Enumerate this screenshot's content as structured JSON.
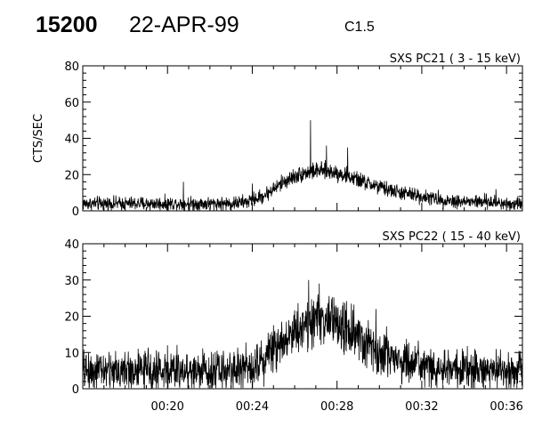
{
  "header": {
    "event_id": "15200",
    "date": "22-APR-99",
    "goes_class": "C1.5"
  },
  "chart_data": [
    {
      "type": "line",
      "title": "SXS PC21  (  3 - 15 keV)",
      "ylabel": "CTS/SEC",
      "xlabel": "",
      "ylim": [
        0,
        80
      ],
      "y_ticks": [
        "0",
        "20",
        "40",
        "60",
        "80"
      ],
      "xlim": [
        "00:16:00",
        "00:36:45"
      ],
      "x_ticks": [
        "00:20",
        "00:24",
        "00:28",
        "00:32",
        "00:36"
      ],
      "grid": false,
      "series": [
        {
          "x": [
            "00:16:00",
            "00:17:00",
            "00:18:00",
            "00:19:00",
            "00:20:00",
            "00:21:00",
            "00:22:00",
            "00:23:00",
            "00:23:45",
            "00:24:30",
            "00:25:00",
            "00:25:30",
            "00:26:00",
            "00:26:30",
            "00:27:00",
            "00:27:30",
            "00:28:00",
            "00:28:30",
            "00:29:00",
            "00:29:30",
            "00:30:00",
            "00:31:00",
            "00:32:00",
            "00:33:00",
            "00:34:00",
            "00:35:00",
            "00:36:00",
            "00:36:45"
          ],
          "y": [
            4,
            4,
            4,
            4,
            4,
            4,
            4,
            4,
            5,
            8,
            12,
            16,
            19,
            21,
            22,
            22,
            21,
            19,
            17,
            15,
            13,
            10,
            8,
            6,
            5,
            5,
            4,
            4
          ],
          "noise": 3,
          "spikes": [
            [
              "00:26:45",
              50
            ],
            [
              "00:27:30",
              36
            ],
            [
              "00:28:30",
              35
            ],
            [
              "00:20:45",
              16
            ],
            [
              "00:24:00",
              15
            ],
            [
              "00:35:30",
              12
            ]
          ]
        }
      ]
    },
    {
      "type": "line",
      "title": "SXS PC22  ( 15 - 40 keV)",
      "ylabel": "",
      "xlabel": "",
      "ylim": [
        0,
        40
      ],
      "y_ticks": [
        "0",
        "10",
        "20",
        "30",
        "40"
      ],
      "xlim": [
        "00:16:00",
        "00:36:45"
      ],
      "x_ticks": [
        "00:20",
        "00:24",
        "00:28",
        "00:32",
        "00:36"
      ],
      "grid": false,
      "series": [
        {
          "x": [
            "00:16:00",
            "00:17:00",
            "00:18:00",
            "00:19:00",
            "00:20:00",
            "00:21:00",
            "00:22:00",
            "00:23:00",
            "00:23:45",
            "00:24:30",
            "00:25:00",
            "00:25:30",
            "00:26:00",
            "00:26:30",
            "00:27:00",
            "00:27:30",
            "00:28:00",
            "00:28:30",
            "00:29:00",
            "00:29:30",
            "00:30:00",
            "00:31:00",
            "00:32:00",
            "00:33:00",
            "00:34:00",
            "00:35:00",
            "00:36:00",
            "00:36:45"
          ],
          "y": [
            5,
            5,
            5,
            5,
            5,
            5,
            5,
            5,
            6,
            8,
            11,
            14,
            16,
            18,
            19,
            19,
            18,
            16,
            14,
            12,
            10,
            8,
            6,
            5,
            5,
            5,
            5,
            5
          ],
          "noise": 4,
          "spikes": [
            [
              "00:26:40",
              30
            ],
            [
              "00:27:10",
              29
            ],
            [
              "00:29:50",
              22
            ],
            [
              "00:20:00",
              12
            ],
            [
              "00:34:30",
              11
            ]
          ]
        }
      ]
    }
  ]
}
